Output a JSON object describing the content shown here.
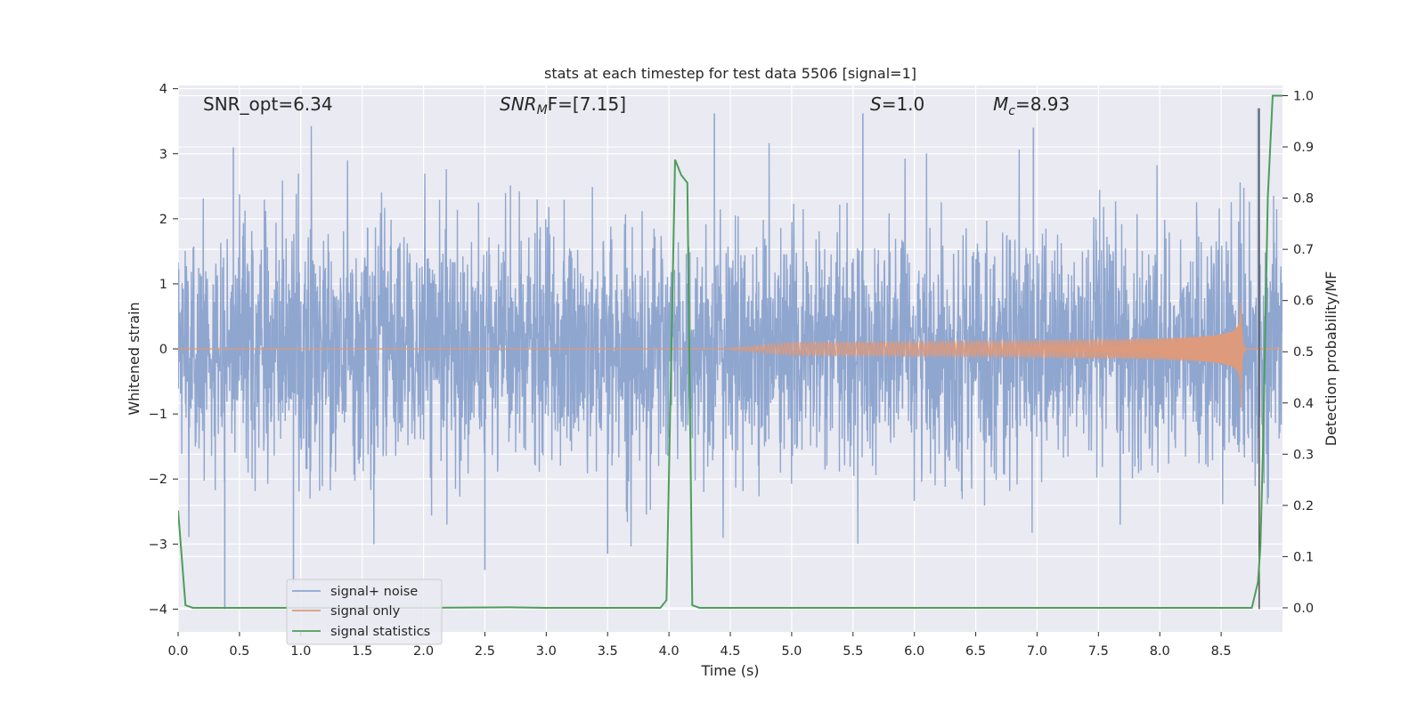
{
  "chart_data": {
    "type": "line",
    "title": "stats at each timestep for test data 5506 [signal=1]",
    "xlabel": "Time (s)",
    "ylabel_left": "Whitened strain",
    "ylabel_right": "Detection probability/MF",
    "xlim": [
      0.0,
      9.0
    ],
    "ylim_left": [
      -4.35,
      4.05
    ],
    "ylim_right": [
      -0.047,
      1.02
    ],
    "grid": true,
    "legend_position": "lower left",
    "x_ticks": [
      "0.0",
      "0.5",
      "1.0",
      "1.5",
      "2.0",
      "2.5",
      "3.0",
      "3.5",
      "4.0",
      "4.5",
      "5.0",
      "5.5",
      "6.0",
      "6.5",
      "7.0",
      "7.5",
      "8.0",
      "8.5"
    ],
    "y_ticks_left": [
      "−4",
      "−3",
      "−2",
      "−1",
      "0",
      "1",
      "2",
      "3",
      "4"
    ],
    "y_ticks_right": [
      "0.0",
      "0.1",
      "0.2",
      "0.3",
      "0.4",
      "0.5",
      "0.6",
      "0.7",
      "0.8",
      "0.9",
      "1.0"
    ],
    "annotations": {
      "snr_opt": "SNR_opt=6.34",
      "snr_mf_main": "SNR",
      "snr_mf_sub": "M",
      "snr_mf_rest": "F=[7.15]",
      "s_main": "S",
      "s_rest": "=1.0",
      "mc_main": "M",
      "mc_sub": "c",
      "mc_rest": "=8.93"
    },
    "series": [
      {
        "name": "signal+ noise",
        "color": "#8fa6cf",
        "axis": "left",
        "description_range": [
          -4.0,
          3.65
        ],
        "noise_sigma": 0.9,
        "outlier_spikes": [
          {
            "x": 0.38,
            "y": -4.0
          },
          {
            "x": 0.45,
            "y": 3.1
          },
          {
            "x": 0.94,
            "y": -3.6
          },
          {
            "x": 2.5,
            "y": -3.4
          },
          {
            "x": 3.5,
            "y": -3.15
          },
          {
            "x": 4.37,
            "y": 3.62
          },
          {
            "x": 5.58,
            "y": 3.62
          },
          {
            "x": 6.97,
            "y": 3.4
          },
          {
            "x": 8.8,
            "y": 3.7
          }
        ]
      },
      {
        "name": "signal only",
        "color": "#dd9a7c",
        "axis": "left",
        "chirp_start": 4.5,
        "merger_time": 8.66,
        "peak_amplitude": 0.6
      },
      {
        "name": "signal statistics",
        "color": "#4c9e5a",
        "axis": "right",
        "x": [
          0.0,
          0.06,
          0.12,
          0.3,
          1.0,
          2.0,
          2.7,
          3.0,
          3.5,
          3.93,
          3.98,
          4.05,
          4.1,
          4.15,
          4.19,
          4.25,
          4.5,
          5.0,
          6.0,
          7.0,
          8.0,
          8.5,
          8.75,
          8.8,
          8.82,
          8.84,
          8.88,
          8.92,
          9.0
        ],
        "y": [
          0.19,
          0.005,
          0.0,
          0.0,
          0.0,
          0.0,
          0.001,
          0.0,
          0.0,
          0.0,
          0.015,
          0.875,
          0.845,
          0.83,
          0.005,
          0.0,
          0.0,
          0.0,
          0.0,
          0.0,
          0.0,
          0.0,
          0.0,
          0.05,
          0.12,
          0.3,
          0.8,
          1.0,
          1.0
        ]
      }
    ],
    "vertical_line": {
      "x": 8.81,
      "color": "#555555",
      "y_from": -4.0,
      "y_to": 3.7
    }
  },
  "colors": {
    "plot_background": "#eaeaf2",
    "grid": "#ffffff"
  }
}
